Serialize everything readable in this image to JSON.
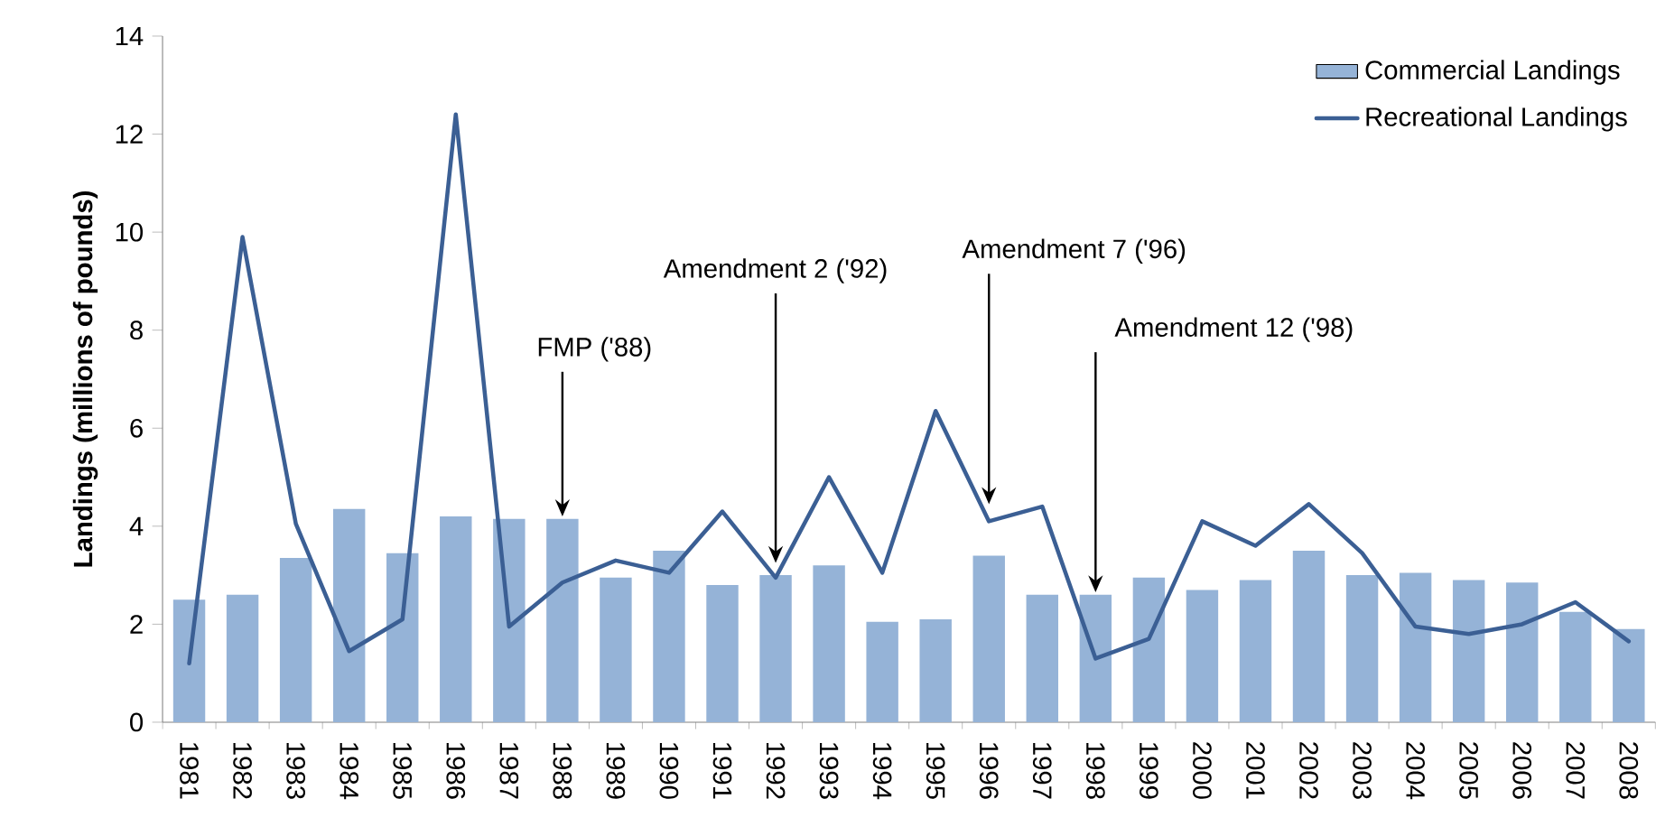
{
  "chart_data": {
    "type": "bar",
    "ylabel": "Landings (millions of pounds)",
    "categories": [
      "1981",
      "1982",
      "1983",
      "1984",
      "1985",
      "1986",
      "1987",
      "1988",
      "1989",
      "1990",
      "1991",
      "1992",
      "1993",
      "1994",
      "1995",
      "1996",
      "1997",
      "1998",
      "1999",
      "2000",
      "2001",
      "2002",
      "2003",
      "2004",
      "2005",
      "2006",
      "2007",
      "2008"
    ],
    "series": [
      {
        "name": "Commercial Landings",
        "color": "#95b3d7",
        "values": [
          2.5,
          2.6,
          3.35,
          4.35,
          3.45,
          4.2,
          4.15,
          4.15,
          2.95,
          3.5,
          2.8,
          3.0,
          3.2,
          2.05,
          2.1,
          3.4,
          2.6,
          2.6,
          2.95,
          2.7,
          2.9,
          3.5,
          3.0,
          3.05,
          2.9,
          2.85,
          2.25,
          1.9
        ]
      },
      {
        "name": "Recreational Landings",
        "type": "line",
        "color": "#3b5f94",
        "values": [
          1.2,
          9.9,
          4.05,
          1.45,
          2.1,
          12.4,
          1.95,
          2.85,
          3.3,
          3.05,
          4.3,
          2.95,
          5.0,
          3.05,
          6.35,
          4.1,
          4.4,
          1.3,
          1.7,
          4.1,
          3.6,
          4.45,
          3.45,
          1.95,
          1.8,
          2.0,
          2.45,
          1.65
        ]
      }
    ],
    "ylim": [
      0,
      14
    ],
    "yticks": [
      0,
      2,
      4,
      6,
      8,
      10,
      12,
      14
    ],
    "grid": false,
    "legend": "top right",
    "marker": "none",
    "line_style": "solid",
    "annotations": [
      {
        "text": "FMP ('88)",
        "x": "1988",
        "y": 4.2
      },
      {
        "text": "Amendment 2 ('92)",
        "x": "1992",
        "y": 3.25
      },
      {
        "text": "Amendment 7 ('96)",
        "x": "1996",
        "y": 4.45
      },
      {
        "text": "Amendment 12 ('98)",
        "x": "1998",
        "y": 2.65
      }
    ]
  }
}
